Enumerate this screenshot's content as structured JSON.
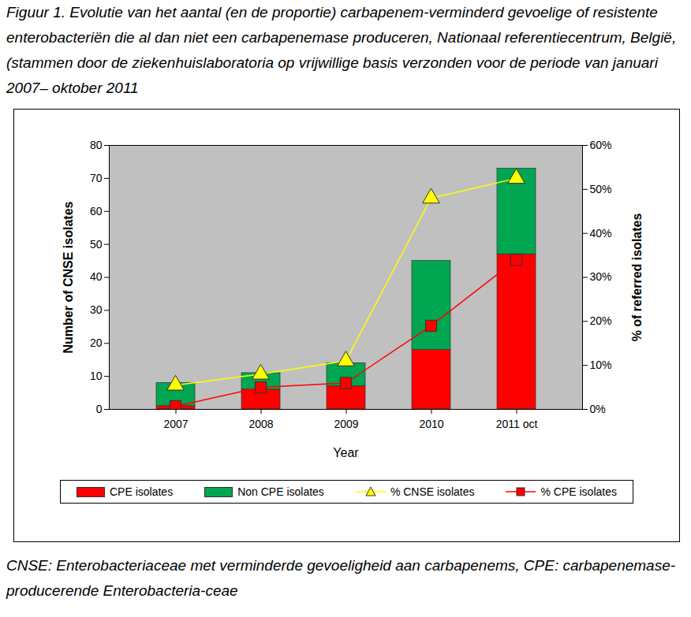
{
  "chart_data": {
    "type": "bar",
    "title": "Figuur 1. Evolutie van het aantal (en de proportie) carbapenem-verminderd gevoelige of resistente enterobacteriën die al dan niet een carbapenemase produceren, Nationaal referentiecentrum, België, (stammen door de ziekenhuislaboratoria op vrijwillige basis verzonden voor de periode van januari 2007– oktober 2011",
    "caption": "CNSE: Enterobacteriaceae met verminderde gevoeligheid aan carbapenems, CPE: carbapenemase-producerende Enterobacteria-ceae",
    "xlabel": "Year",
    "ylabel": "Number of CNSE isolates",
    "y2label": "% of referred isolates",
    "categories": [
      "2007",
      "2008",
      "2009",
      "2010",
      "2011 oct"
    ],
    "stacked": true,
    "grid": false,
    "legend": "bottom",
    "ylim": [
      0,
      80
    ],
    "yticks": [
      0,
      10,
      20,
      30,
      40,
      50,
      60,
      70,
      80
    ],
    "y2lim": [
      0,
      60
    ],
    "y2ticks": [
      {
        "value": 0,
        "label": "0%"
      },
      {
        "value": 10,
        "label": "10%"
      },
      {
        "value": 20,
        "label": "20%"
      },
      {
        "value": 30,
        "label": "30%"
      },
      {
        "value": 40,
        "label": "40%"
      },
      {
        "value": 50,
        "label": "50%"
      },
      {
        "value": 60,
        "label": "60%"
      }
    ],
    "series": [
      {
        "name": "CPE isolates",
        "type": "bar",
        "color": "#ff0000",
        "values": [
          1,
          6,
          7,
          18,
          47
        ]
      },
      {
        "name": "Non CPE isolates",
        "type": "bar",
        "color": "#00a650",
        "values": [
          7,
          5,
          7,
          27,
          26
        ]
      },
      {
        "name": "% CNSE isolates",
        "type": "line",
        "axis": "y2",
        "color": "#ffff00",
        "marker": "triangle",
        "values": [
          5.5,
          8,
          11,
          48,
          52.5
        ]
      },
      {
        "name": "% CPE isolates",
        "type": "line",
        "axis": "y2",
        "color": "#ff0000",
        "marker": "square",
        "values": [
          0.7,
          5,
          6,
          19,
          34
        ]
      }
    ]
  }
}
